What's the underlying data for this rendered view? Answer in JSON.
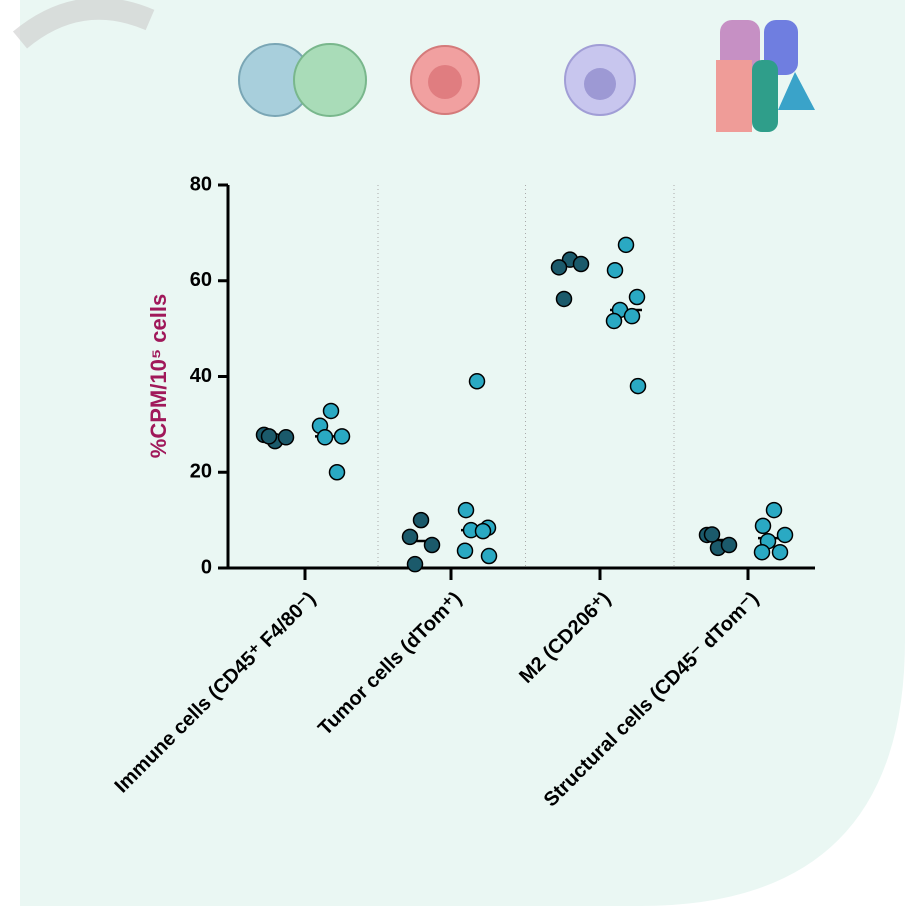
{
  "chart_data": {
    "type": "dot",
    "y_label": "%CPM/10⁵ cells",
    "categories": [
      "Immune cells (CD45⁺ F4/80⁻)",
      "Tumor cells (dTom⁺)",
      "M2 (CD206⁺)",
      "Structural cells (CD45⁻ dTom⁻)"
    ],
    "series": [
      {
        "color": "#1b5a6b",
        "values": [
          [
            26.5,
            27.8,
            27.3,
            27.5
          ],
          [
            10.0,
            6.5,
            4.8,
            0.8
          ],
          [
            64.4,
            62.8,
            63.5,
            56.2
          ],
          [
            4.2,
            6.9,
            4.8,
            7.0
          ]
        ]
      },
      {
        "color": "#2aa9c3",
        "values": [
          [
            32.8,
            29.7,
            27.5,
            27.3,
            20.0
          ],
          [
            39.0,
            12.1,
            8.4,
            7.9,
            7.7,
            3.6,
            2.5
          ],
          [
            67.5,
            62.2,
            56.6,
            53.9,
            52.6,
            51.6,
            38.0
          ],
          [
            12.1,
            8.8,
            6.9,
            5.6,
            3.3,
            3.3
          ]
        ]
      }
    ],
    "ylim": [
      0,
      80
    ],
    "yticks": [
      0,
      20,
      40,
      60,
      80
    ]
  }
}
